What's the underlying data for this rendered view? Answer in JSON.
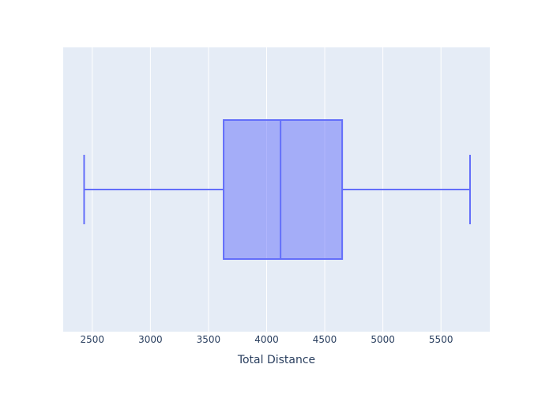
{
  "chart_data": {
    "type": "box",
    "orientation": "horizontal",
    "title": "",
    "xlabel": "Total Distance",
    "ylabel": "",
    "xlim": [
      2250,
      5920
    ],
    "xticks": [
      2500,
      3000,
      3500,
      4000,
      4500,
      5000,
      5500
    ],
    "tick_labels": [
      "2500",
      "3000",
      "3500",
      "4000",
      "4500",
      "5000",
      "5500"
    ],
    "grid": true,
    "legend": "none",
    "series": [
      {
        "min": 2430,
        "q1": 3630,
        "median": 4120,
        "q3": 4650,
        "max": 5750
      }
    ],
    "colors": {
      "plot_background": "#e5ecf6",
      "gridline": "#ffffff",
      "box_line": "#636efa",
      "box_fill": "#636efa",
      "text": "#2a3f5f"
    }
  }
}
